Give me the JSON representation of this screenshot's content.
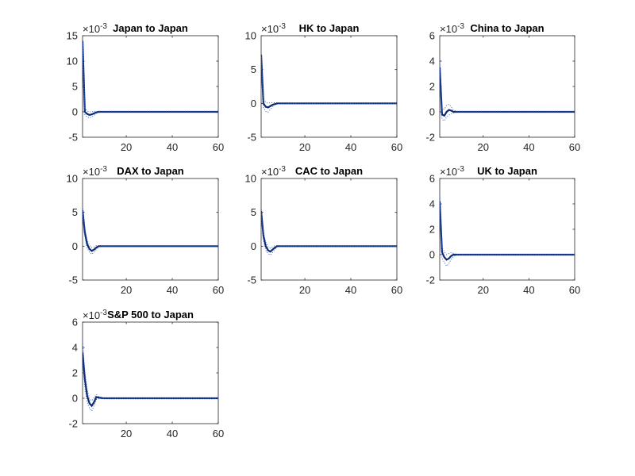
{
  "chart_data": [
    {
      "type": "line",
      "title": "Japan to Japan",
      "exponent_label": "×10-3",
      "xlim": [
        1,
        60
      ],
      "ylim": [
        -5,
        15
      ],
      "xticks": [
        20,
        40,
        60
      ],
      "yticks": [
        -5,
        0,
        5,
        10,
        15
      ],
      "ytick_labels": [
        "-5",
        "0",
        "5",
        "10",
        "15"
      ],
      "series": [
        {
          "role": "response",
          "color": "#0e2a6b",
          "style": "solid",
          "x": [
            1,
            2,
            3,
            4,
            5,
            6,
            7,
            8,
            10,
            15,
            20,
            30,
            40,
            50,
            60
          ],
          "y": [
            14,
            0.0,
            -0.4,
            -0.6,
            -0.5,
            -0.3,
            -0.1,
            0,
            0,
            0,
            0,
            0,
            0,
            0,
            0
          ]
        },
        {
          "role": "upper-band",
          "color": "#2a5bd7",
          "style": "dotted",
          "x": [
            1,
            2,
            3,
            4,
            5,
            6,
            7,
            8,
            10,
            15,
            20,
            30,
            40,
            50,
            60
          ],
          "y": [
            14.4,
            0.6,
            0.2,
            0.0,
            0.0,
            0.1,
            0.1,
            0.1,
            0.05,
            0.05,
            0.05,
            0.05,
            0.05,
            0.05,
            0.05
          ]
        },
        {
          "role": "lower-band",
          "color": "#2a5bd7",
          "style": "dotted",
          "x": [
            1,
            2,
            3,
            4,
            5,
            6,
            7,
            8,
            10,
            15,
            20,
            30,
            40,
            50,
            60
          ],
          "y": [
            13.6,
            -0.6,
            -1.0,
            -1.2,
            -1.0,
            -0.7,
            -0.3,
            -0.1,
            -0.05,
            -0.05,
            -0.05,
            -0.05,
            -0.05,
            -0.05,
            -0.05
          ]
        }
      ]
    },
    {
      "type": "line",
      "title": "HK to Japan",
      "exponent_label": "×10-3",
      "xlim": [
        1,
        60
      ],
      "ylim": [
        -5,
        10
      ],
      "xticks": [
        20,
        40,
        60
      ],
      "yticks": [
        -5,
        0,
        5,
        10
      ],
      "ytick_labels": [
        "-5",
        "0",
        "5",
        "10"
      ],
      "series": [
        {
          "role": "response",
          "color": "#0e2a6b",
          "style": "solid",
          "x": [
            1,
            2,
            3,
            4,
            5,
            6,
            7,
            8,
            10,
            15,
            20,
            30,
            40,
            50,
            60
          ],
          "y": [
            7.2,
            0.0,
            -0.5,
            -0.6,
            -0.4,
            -0.2,
            -0.1,
            0,
            0,
            0,
            0,
            0,
            0,
            0,
            0
          ]
        },
        {
          "role": "upper-band",
          "color": "#2a5bd7",
          "style": "dotted",
          "x": [
            1,
            2,
            3,
            4,
            5,
            6,
            7,
            8,
            10,
            15,
            20,
            30,
            40,
            50,
            60
          ],
          "y": [
            7.6,
            0.6,
            0.2,
            0.0,
            0.1,
            0.1,
            0.1,
            0.1,
            0.05,
            0.05,
            0.05,
            0.05,
            0.05,
            0.05,
            0.05
          ]
        },
        {
          "role": "lower-band",
          "color": "#2a5bd7",
          "style": "dotted",
          "x": [
            1,
            2,
            3,
            4,
            5,
            6,
            7,
            8,
            10,
            15,
            20,
            30,
            40,
            50,
            60
          ],
          "y": [
            6.8,
            -0.6,
            -1.2,
            -1.3,
            -0.9,
            -0.5,
            -0.2,
            -0.1,
            -0.05,
            -0.05,
            -0.05,
            -0.05,
            -0.05,
            -0.05,
            -0.05
          ]
        }
      ]
    },
    {
      "type": "line",
      "title": "China to Japan",
      "exponent_label": "×10-3",
      "xlim": [
        1,
        60
      ],
      "ylim": [
        -2,
        6
      ],
      "xticks": [
        20,
        40,
        60
      ],
      "yticks": [
        -2,
        0,
        2,
        4,
        6
      ],
      "ytick_labels": [
        "-2",
        "0",
        "2",
        "4",
        "6"
      ],
      "series": [
        {
          "role": "response",
          "color": "#0e2a6b",
          "style": "solid",
          "x": [
            1,
            2,
            3,
            4,
            5,
            6,
            7,
            8,
            10,
            15,
            20,
            30,
            40,
            50,
            60
          ],
          "y": [
            3.5,
            -0.2,
            -0.3,
            0.0,
            0.15,
            0.1,
            0.0,
            0,
            0,
            0,
            0,
            0,
            0,
            0,
            0
          ]
        },
        {
          "role": "upper-band",
          "color": "#2a5bd7",
          "style": "dotted",
          "x": [
            1,
            2,
            3,
            4,
            5,
            6,
            7,
            8,
            10,
            15,
            20,
            30,
            40,
            50,
            60
          ],
          "y": [
            4.1,
            0.3,
            0.2,
            0.5,
            0.6,
            0.4,
            0.15,
            0.05,
            0.02,
            0.02,
            0.02,
            0.02,
            0.02,
            0.02,
            0.02
          ]
        },
        {
          "role": "lower-band",
          "color": "#2a5bd7",
          "style": "dotted",
          "x": [
            1,
            2,
            3,
            4,
            5,
            6,
            7,
            8,
            10,
            15,
            20,
            30,
            40,
            50,
            60
          ],
          "y": [
            2.9,
            -0.6,
            -0.7,
            -0.4,
            -0.25,
            -0.15,
            -0.08,
            -0.04,
            -0.02,
            -0.02,
            -0.02,
            -0.02,
            -0.02,
            -0.02,
            -0.02
          ]
        }
      ]
    },
    {
      "type": "line",
      "title": "DAX to Japan",
      "exponent_label": "×10-3",
      "xlim": [
        1,
        60
      ],
      "ylim": [
        -5,
        10
      ],
      "xticks": [
        20,
        40,
        60
      ],
      "yticks": [
        -5,
        0,
        5,
        10
      ],
      "ytick_labels": [
        "-5",
        "0",
        "5",
        "10"
      ],
      "series": [
        {
          "role": "response",
          "color": "#0e2a6b",
          "style": "solid",
          "x": [
            1,
            2,
            3,
            4,
            5,
            6,
            7,
            8,
            10,
            15,
            20,
            30,
            40,
            50,
            60
          ],
          "y": [
            5.3,
            2.0,
            0.3,
            -0.4,
            -0.7,
            -0.5,
            -0.2,
            0,
            0,
            0,
            0,
            0,
            0,
            0,
            0
          ]
        },
        {
          "role": "upper-band",
          "color": "#2a5bd7",
          "style": "dotted",
          "x": [
            1,
            2,
            3,
            4,
            5,
            6,
            7,
            8,
            10,
            15,
            20,
            30,
            40,
            50,
            60
          ],
          "y": [
            5.9,
            2.6,
            0.9,
            0.1,
            -0.2,
            -0.1,
            0.1,
            0.1,
            0.05,
            0.05,
            0.05,
            0.05,
            0.05,
            0.05,
            0.05
          ]
        },
        {
          "role": "lower-band",
          "color": "#2a5bd7",
          "style": "dotted",
          "x": [
            1,
            2,
            3,
            4,
            5,
            6,
            7,
            8,
            10,
            15,
            20,
            30,
            40,
            50,
            60
          ],
          "y": [
            4.7,
            1.4,
            -0.3,
            -0.9,
            -1.2,
            -0.9,
            -0.5,
            -0.1,
            -0.05,
            -0.05,
            -0.05,
            -0.05,
            -0.05,
            -0.05,
            -0.05
          ]
        }
      ]
    },
    {
      "type": "line",
      "title": "CAC to Japan",
      "exponent_label": "×10-3",
      "xlim": [
        1,
        60
      ],
      "ylim": [
        -5,
        10
      ],
      "xticks": [
        20,
        40,
        60
      ],
      "yticks": [
        -5,
        0,
        5,
        10
      ],
      "ytick_labels": [
        "-5",
        "0",
        "5",
        "10"
      ],
      "series": [
        {
          "role": "response",
          "color": "#0e2a6b",
          "style": "solid",
          "x": [
            1,
            2,
            3,
            4,
            5,
            6,
            7,
            8,
            10,
            15,
            20,
            30,
            40,
            50,
            60
          ],
          "y": [
            5.2,
            1.5,
            0.0,
            -0.6,
            -0.8,
            -0.5,
            -0.2,
            0,
            0,
            0,
            0,
            0,
            0,
            0,
            0
          ]
        },
        {
          "role": "upper-band",
          "color": "#2a5bd7",
          "style": "dotted",
          "x": [
            1,
            2,
            3,
            4,
            5,
            6,
            7,
            8,
            10,
            15,
            20,
            30,
            40,
            50,
            60
          ],
          "y": [
            5.8,
            2.1,
            0.6,
            -0.1,
            -0.3,
            -0.1,
            0.1,
            0.1,
            0.05,
            0.05,
            0.05,
            0.05,
            0.05,
            0.05,
            0.05
          ]
        },
        {
          "role": "lower-band",
          "color": "#2a5bd7",
          "style": "dotted",
          "x": [
            1,
            2,
            3,
            4,
            5,
            6,
            7,
            8,
            10,
            15,
            20,
            30,
            40,
            50,
            60
          ],
          "y": [
            4.6,
            0.9,
            -0.6,
            -1.1,
            -1.3,
            -0.9,
            -0.5,
            -0.1,
            -0.05,
            -0.05,
            -0.05,
            -0.05,
            -0.05,
            -0.05,
            -0.05
          ]
        }
      ]
    },
    {
      "type": "line",
      "title": "UK to Japan",
      "exponent_label": "×10-3",
      "xlim": [
        1,
        60
      ],
      "ylim": [
        -2,
        6
      ],
      "xticks": [
        20,
        40,
        60
      ],
      "yticks": [
        -2,
        0,
        2,
        4,
        6
      ],
      "ytick_labels": [
        "-2",
        "0",
        "2",
        "4",
        "6"
      ],
      "series": [
        {
          "role": "response",
          "color": "#0e2a6b",
          "style": "solid",
          "x": [
            1,
            2,
            3,
            4,
            5,
            6,
            7,
            8,
            10,
            15,
            20,
            30,
            40,
            50,
            60
          ],
          "y": [
            4.2,
            0.2,
            -0.2,
            -0.4,
            -0.3,
            -0.1,
            0.0,
            0,
            0,
            0,
            0,
            0,
            0,
            0,
            0
          ]
        },
        {
          "role": "upper-band",
          "color": "#2a5bd7",
          "style": "dotted",
          "x": [
            1,
            2,
            3,
            4,
            5,
            6,
            7,
            8,
            10,
            15,
            20,
            30,
            40,
            50,
            60
          ],
          "y": [
            4.8,
            0.6,
            0.2,
            0.0,
            0.1,
            0.15,
            0.1,
            0.05,
            0.02,
            0.02,
            0.02,
            0.02,
            0.02,
            0.02,
            0.02
          ]
        },
        {
          "role": "lower-band",
          "color": "#2a5bd7",
          "style": "dotted",
          "x": [
            1,
            2,
            3,
            4,
            5,
            6,
            7,
            8,
            10,
            15,
            20,
            30,
            40,
            50,
            60
          ],
          "y": [
            3.6,
            -0.3,
            -0.6,
            -0.9,
            -0.7,
            -0.35,
            -0.15,
            -0.05,
            -0.02,
            -0.02,
            -0.02,
            -0.02,
            -0.02,
            -0.02,
            -0.02
          ]
        }
      ]
    },
    {
      "type": "line",
      "title": "S&P 500 to Japan",
      "exponent_label": "×10-3",
      "xlim": [
        1,
        60
      ],
      "ylim": [
        -2,
        6
      ],
      "xticks": [
        20,
        40,
        60
      ],
      "yticks": [
        -2,
        0,
        2,
        4,
        6
      ],
      "ytick_labels": [
        "-2",
        "0",
        "2",
        "4",
        "6"
      ],
      "series": [
        {
          "role": "response",
          "color": "#0e2a6b",
          "style": "solid",
          "x": [
            1,
            2,
            3,
            4,
            5,
            6,
            7,
            8,
            10,
            15,
            20,
            30,
            40,
            50,
            60
          ],
          "y": [
            3.6,
            1.5,
            0.2,
            -0.4,
            -0.6,
            -0.3,
            0.1,
            0.05,
            0,
            0,
            0,
            0,
            0,
            0,
            0
          ]
        },
        {
          "role": "upper-band",
          "color": "#2a5bd7",
          "style": "dotted",
          "x": [
            1,
            2,
            3,
            4,
            5,
            6,
            7,
            8,
            10,
            15,
            20,
            30,
            40,
            50,
            60
          ],
          "y": [
            4.5,
            2.1,
            0.7,
            0.0,
            -0.2,
            0.05,
            0.3,
            0.15,
            0.03,
            0.02,
            0.02,
            0.02,
            0.02,
            0.02,
            0.02
          ]
        },
        {
          "role": "lower-band",
          "color": "#2a5bd7",
          "style": "dotted",
          "x": [
            1,
            2,
            3,
            4,
            5,
            6,
            7,
            8,
            10,
            15,
            20,
            30,
            40,
            50,
            60
          ],
          "y": [
            2.8,
            0.9,
            -0.3,
            -0.8,
            -1.0,
            -0.6,
            -0.1,
            -0.05,
            -0.03,
            -0.02,
            -0.02,
            -0.02,
            -0.02,
            -0.02,
            -0.02
          ]
        }
      ]
    }
  ]
}
